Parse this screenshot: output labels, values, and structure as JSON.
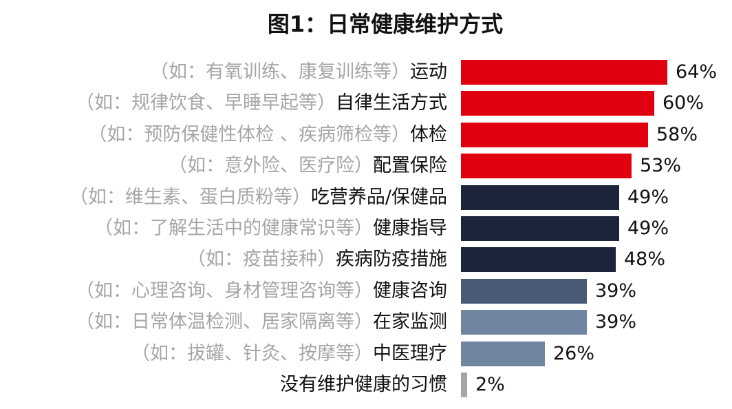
{
  "title": "图1：日常健康维护方式",
  "chart_data": {
    "type": "bar",
    "orientation": "horizontal",
    "title": "图1：日常健康维护方式",
    "value_suffix": "%",
    "xlim": [
      0,
      100
    ],
    "grid": false,
    "legend": "none",
    "categories": [
      {
        "example": "（如：有氧训练、康复训练等）",
        "name": "运动",
        "value": 64,
        "color": "#e00010"
      },
      {
        "example": "（如：规律饮食、早睡早起等）",
        "name": "自律生活方式",
        "value": 60,
        "color": "#e00010"
      },
      {
        "example": "（如：预防保健性体检 、疾病筛检等）",
        "name": "体检",
        "value": 58,
        "color": "#e00010"
      },
      {
        "example": "（如：意外险、医疗险）",
        "name": "配置保险",
        "value": 53,
        "color": "#e00010"
      },
      {
        "example": "（如：维生素、蛋白质粉等）",
        "name": "吃营养品/保健品",
        "value": 49,
        "color": "#1c243b"
      },
      {
        "example": "（如：了解生活中的健康常识等）",
        "name": "健康指导",
        "value": 49,
        "color": "#1c243b"
      },
      {
        "example": "（如：疫苗接种）",
        "name": "疾病防疫措施",
        "value": 48,
        "color": "#1c243b"
      },
      {
        "example": "（如：心理咨询、身材管理咨询等）",
        "name": "健康咨询",
        "value": 39,
        "color": "#485a75"
      },
      {
        "example": "（如：日常体温检测、居家隔离等）",
        "name": "在家监测",
        "value": 39,
        "color": "#7085a1"
      },
      {
        "example": "（如：拔罐、针灸、按摩等）",
        "name": "中医理疗",
        "value": 26,
        "color": "#7085a1"
      },
      {
        "example": "",
        "name": "没有维护健康的习惯",
        "value": 2,
        "color": "#a6a6a6"
      }
    ]
  }
}
